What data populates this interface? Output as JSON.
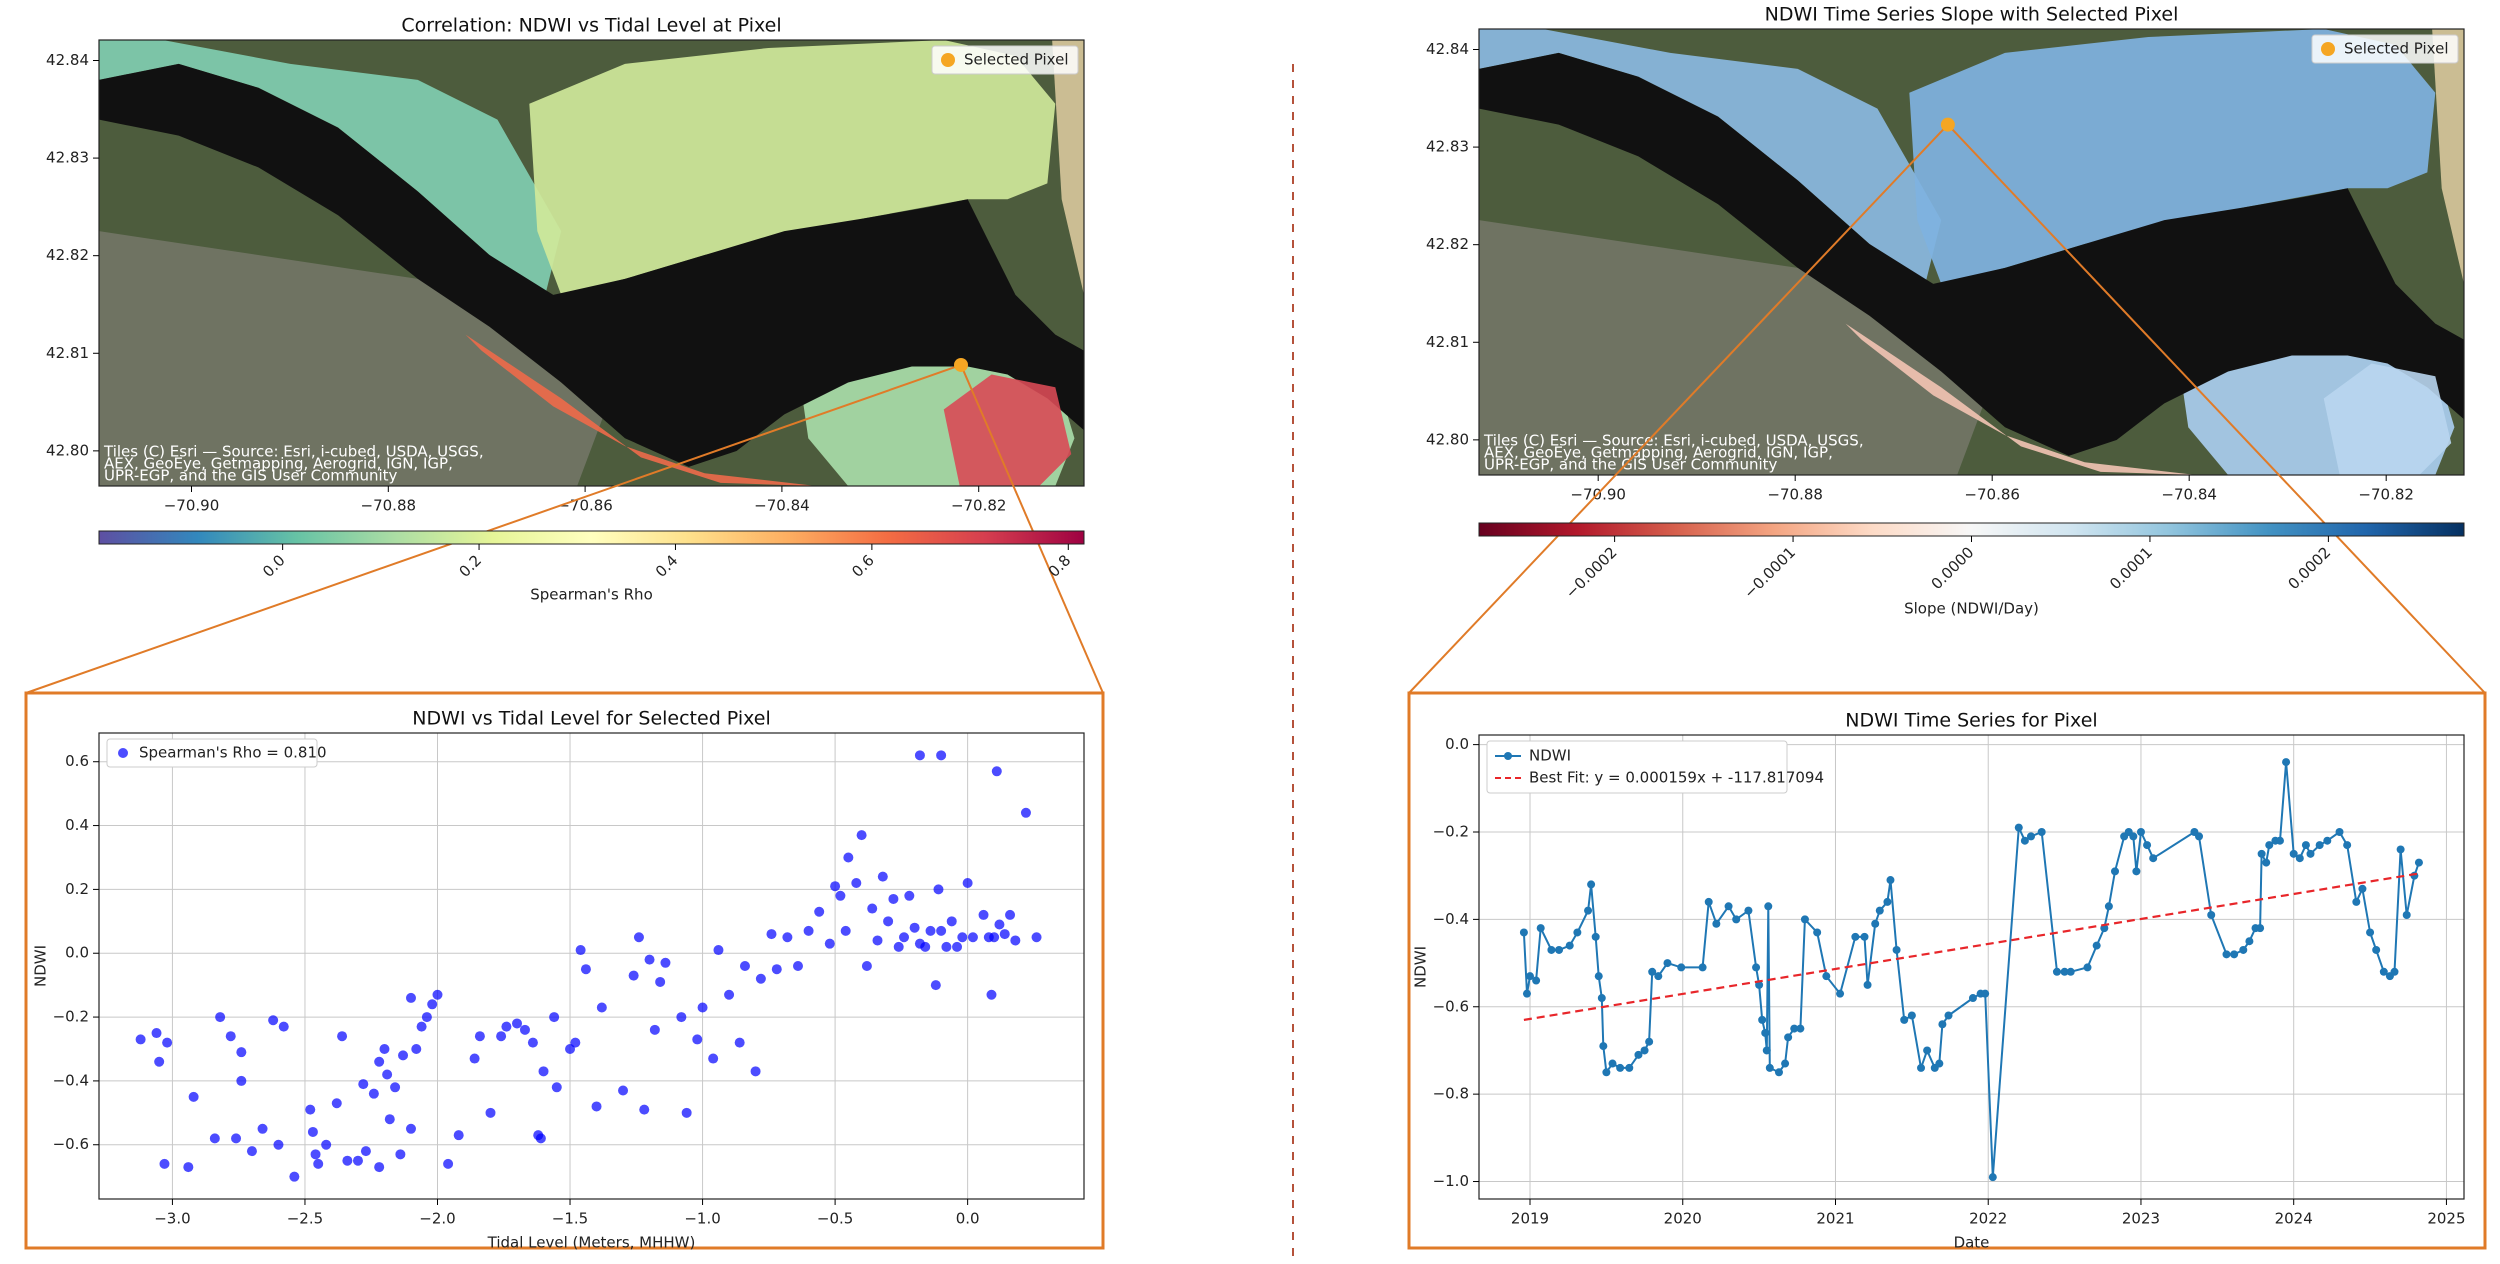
{
  "chart_data": [
    {
      "type": "map",
      "title": "Correlation: NDWI vs Tidal Level at Pixel",
      "xlim": [
        -70.9094,
        -70.8093
      ],
      "ylim": [
        42.7964,
        42.8421
      ],
      "xticks": [
        {
          "value": -70.9,
          "label": "−70.90"
        },
        {
          "value": -70.88,
          "label": "−70.88"
        },
        {
          "value": -70.86,
          "label": "−70.86"
        },
        {
          "value": -70.84,
          "label": "−70.84"
        },
        {
          "value": -70.82,
          "label": "−70.82"
        }
      ],
      "yticks": [
        {
          "value": 42.8,
          "label": "42.80"
        },
        42.81,
        42.82,
        42.83,
        42.84
      ],
      "series": [
        {
          "name": "Selected Pixel",
          "color": "#f5a623",
          "x": [
            -70.8218
          ],
          "values": [
            42.8088
          ]
        }
      ],
      "legend": "upper right",
      "colorbar": {
        "label": "Spearman's Rho",
        "colormap": "Spectral_r",
        "lim": [
          -0.187,
          0.816
        ],
        "ticks": [
          {
            "value": 0,
            "label": "0.0"
          },
          0.2,
          0.4,
          0.6,
          0.8
        ]
      },
      "attribution": [
        "Tiles (C) Esri — Source: Esri, i-cubed, USDA, USGS,",
        "AEX, GeoEye, Getmapping, Aerogrid, IGN, IGP,",
        "UPR-EGP, and the GIS User Community"
      ]
    },
    {
      "type": "map",
      "title": "NDWI Time Series Slope with Selected Pixel",
      "xlim": [
        -70.9121,
        -70.8121
      ],
      "ylim": [
        42.7964,
        42.8421
      ],
      "xticks": [
        {
          "value": -70.9,
          "label": "−70.90"
        },
        {
          "value": -70.88,
          "label": "−70.88"
        },
        {
          "value": -70.86,
          "label": "−70.86"
        },
        {
          "value": -70.84,
          "label": "−70.84"
        },
        {
          "value": -70.82,
          "label": "−70.82"
        }
      ],
      "yticks": [
        {
          "value": 42.8,
          "label": "42.80"
        },
        42.81,
        42.82,
        42.83,
        42.84
      ],
      "series": [
        {
          "name": "Selected Pixel",
          "color": "#f5a623",
          "x": [
            -70.8645
          ],
          "values": [
            42.8323
          ]
        }
      ],
      "legend": "upper right",
      "colorbar": {
        "label": "Slope (NDWI/Day)",
        "colormap": "RdBu",
        "lim": [
          -0.000276,
          0.000276
        ],
        "ticks": [
          {
            "value": -0.0002,
            "label": "−0.0002"
          },
          {
            "value": -0.0001,
            "label": "−0.0001"
          },
          {
            "value": 0,
            "label": "0.0000"
          },
          0.0001,
          0.0002
        ]
      },
      "attribution": [
        "Tiles (C) Esri — Source: Esri, i-cubed, USDA, USGS,",
        "AEX, GeoEye, Getmapping, Aerogrid, IGN, IGP,",
        "UPR-EGP, and the GIS User Community"
      ]
    },
    {
      "type": "scatter",
      "title": "NDWI vs Tidal Level for Selected Pixel",
      "x_label": "Tidal Level (Meters, MHHW)",
      "y_label": "NDWI",
      "xlim": [
        -3.277,
        0.439
      ],
      "ylim": [
        -0.77,
        0.69
      ],
      "xticks": [
        {
          "value": -3,
          "label": "−3.0"
        },
        {
          "value": -2.5,
          "label": "−2.5"
        },
        {
          "value": -2,
          "label": "−2.0"
        },
        {
          "value": -1.5,
          "label": "−1.5"
        },
        {
          "value": -1,
          "label": "−1.0"
        },
        {
          "value": -0.5,
          "label": "−0.5"
        },
        {
          "value": 0,
          "label": "0.0"
        }
      ],
      "yticks": [
        {
          "value": -0.6,
          "label": "−0.6"
        },
        {
          "value": -0.4,
          "label": "−0.4"
        },
        {
          "value": -0.2,
          "label": "−0.2"
        },
        {
          "value": 0,
          "label": "0.0"
        },
        0.2,
        0.4,
        0.6
      ],
      "grid": true,
      "legend": "upper left",
      "series": [
        {
          "name": "Spearman's Rho = 0.810",
          "color": "#0000ff",
          "x": [
            -3.12,
            -3.06,
            -3.05,
            -3.02,
            -3.03,
            -2.94,
            -2.92,
            -2.84,
            -2.82,
            -2.78,
            -2.74,
            -2.74,
            -2.76,
            -2.7,
            -2.66,
            -2.62,
            -2.58,
            -2.6,
            -2.54,
            -2.48,
            -2.47,
            -2.46,
            -2.45,
            -2.42,
            -2.38,
            -2.36,
            -2.34,
            -2.3,
            -2.28,
            -2.27,
            -2.24,
            -2.22,
            -2.22,
            -2.2,
            -2.19,
            -2.18,
            -2.16,
            -2.14,
            -2.13,
            -2.1,
            -2.1,
            -2.08,
            -2.06,
            -2.04,
            -2.02,
            -2.0,
            -1.96,
            -1.92,
            -1.86,
            -1.84,
            -1.8,
            -1.76,
            -1.74,
            -1.7,
            -1.67,
            -1.64,
            -1.62,
            -1.61,
            -1.6,
            -1.56,
            -1.55,
            -1.5,
            -1.48,
            -1.46,
            -1.44,
            -1.4,
            -1.38,
            -1.3,
            -1.26,
            -1.24,
            -1.22,
            -1.2,
            -1.18,
            -1.16,
            -1.14,
            -1.08,
            -1.06,
            -1.02,
            -1.0,
            -0.96,
            -0.94,
            -0.9,
            -0.86,
            -0.84,
            -0.8,
            -0.78,
            -0.74,
            -0.72,
            -0.68,
            -0.64,
            -0.6,
            -0.56,
            -0.52,
            -0.5,
            -0.48,
            -0.46,
            -0.45,
            -0.4,
            -0.42,
            -0.38,
            -0.36,
            -0.34,
            -0.32,
            -0.3,
            -0.28,
            -0.26,
            -0.24,
            -0.22,
            -0.2,
            -0.18,
            -0.16,
            -0.14,
            -0.12,
            -0.11,
            -0.1,
            -0.08,
            -0.06,
            -0.04,
            -0.02,
            0.0,
            0.02,
            0.06,
            0.08,
            0.09,
            0.1,
            0.11,
            0.12,
            0.14,
            0.16,
            0.18,
            0.22,
            0.26,
            -0.18,
            -0.1
          ],
          "values": [
            -0.27,
            -0.25,
            -0.34,
            -0.28,
            -0.66,
            -0.67,
            -0.45,
            -0.58,
            -0.2,
            -0.26,
            -0.31,
            -0.4,
            -0.58,
            -0.62,
            -0.55,
            -0.21,
            -0.23,
            -0.6,
            -0.7,
            -0.49,
            -0.56,
            -0.63,
            -0.66,
            -0.6,
            -0.47,
            -0.26,
            -0.65,
            -0.65,
            -0.41,
            -0.62,
            -0.44,
            -0.67,
            -0.34,
            -0.3,
            -0.38,
            -0.52,
            -0.42,
            -0.63,
            -0.32,
            -0.55,
            -0.14,
            -0.3,
            -0.23,
            -0.2,
            -0.16,
            -0.13,
            -0.66,
            -0.57,
            -0.33,
            -0.26,
            -0.5,
            -0.26,
            -0.23,
            -0.22,
            -0.24,
            -0.28,
            -0.57,
            -0.58,
            -0.37,
            -0.2,
            -0.42,
            -0.3,
            -0.28,
            0.01,
            -0.05,
            -0.48,
            -0.17,
            -0.43,
            -0.07,
            0.05,
            -0.49,
            -0.02,
            -0.24,
            -0.09,
            -0.03,
            -0.2,
            -0.5,
            -0.27,
            -0.17,
            -0.33,
            0.01,
            -0.13,
            -0.28,
            -0.04,
            -0.37,
            -0.08,
            0.06,
            -0.05,
            0.05,
            -0.04,
            0.07,
            0.13,
            0.03,
            0.21,
            0.18,
            0.07,
            0.3,
            0.37,
            0.22,
            -0.04,
            0.14,
            0.04,
            0.24,
            0.1,
            0.17,
            0.02,
            0.05,
            0.18,
            0.08,
            0.03,
            0.02,
            0.07,
            -0.1,
            0.2,
            0.07,
            0.02,
            0.1,
            0.02,
            0.05,
            0.22,
            0.05,
            0.12,
            0.05,
            -0.13,
            0.05,
            0.57,
            0.09,
            0.06,
            0.12,
            0.04,
            0.44,
            0.05,
            0.62,
            0.62
          ]
        }
      ]
    },
    {
      "type": "line",
      "title": "NDWI Time Series for Pixel",
      "x_label": "Date",
      "y_label": "NDWI",
      "xlim": [
        2018.666,
        2025.115
      ],
      "ylim": [
        -1.04,
        0.022
      ],
      "xticks": [
        2019,
        2020,
        2021,
        2022,
        2023,
        2024,
        2025
      ],
      "yticks": [
        {
          "value": -1,
          "label": "−1.0"
        },
        {
          "value": -0.8,
          "label": "−0.8"
        },
        {
          "value": -0.6,
          "label": "−0.6"
        },
        {
          "value": -0.4,
          "label": "−0.4"
        },
        {
          "value": -0.2,
          "label": "−0.2"
        },
        {
          "value": 0,
          "label": "0.0"
        }
      ],
      "grid": true,
      "legend": "upper left",
      "series": [
        {
          "name": "NDWI",
          "color": "#1f77b4",
          "marker": true,
          "x": [
            2018.96,
            2018.98,
            2019.0,
            2019.04,
            2019.07,
            2019.14,
            2019.19,
            2019.26,
            2019.31,
            2019.38,
            2019.4,
            2019.43,
            2019.45,
            2019.47,
            2019.48,
            2019.5,
            2019.54,
            2019.59,
            2019.65,
            2019.71,
            2019.75,
            2019.78,
            2019.8,
            2019.84,
            2019.9,
            2019.99,
            2020.13,
            2020.17,
            2020.22,
            2020.3,
            2020.35,
            2020.43,
            2020.48,
            2020.5,
            2020.52,
            2020.54,
            2020.55,
            2020.56,
            2020.57,
            2020.63,
            2020.67,
            2020.69,
            2020.73,
            2020.77,
            2020.8,
            2020.88,
            2020.94,
            2021.03,
            2021.13,
            2021.19,
            2021.21,
            2021.26,
            2021.29,
            2021.34,
            2021.36,
            2021.4,
            2021.45,
            2021.5,
            2021.56,
            2021.6,
            2021.65,
            2021.68,
            2021.7,
            2021.74,
            2021.9,
            2021.95,
            2021.98,
            2022.03,
            2022.2,
            2022.24,
            2022.28,
            2022.35,
            2022.45,
            2022.5,
            2022.54,
            2022.65,
            2022.71,
            2022.76,
            2022.79,
            2022.83,
            2022.89,
            2022.92,
            2022.95,
            2022.97,
            2023.0,
            2023.04,
            2023.08,
            2023.35,
            2023.38,
            2023.46,
            2023.56,
            2023.61,
            2023.67,
            2023.71,
            2023.75,
            2023.78,
            2023.79,
            2023.82,
            2023.84,
            2023.88,
            2023.91,
            2023.95,
            2024.0,
            2024.04,
            2024.08,
            2024.11,
            2024.17,
            2024.22,
            2024.3,
            2024.35,
            2024.41,
            2024.45,
            2024.5,
            2024.54,
            2024.59,
            2024.63,
            2024.66,
            2024.7,
            2024.74,
            2024.79,
            2024.82
          ],
          "values": [
            -0.43,
            -0.57,
            -0.53,
            -0.54,
            -0.42,
            -0.47,
            -0.47,
            -0.46,
            -0.43,
            -0.38,
            -0.32,
            -0.44,
            -0.53,
            -0.58,
            -0.69,
            -0.75,
            -0.73,
            -0.74,
            -0.74,
            -0.71,
            -0.7,
            -0.68,
            -0.52,
            -0.53,
            -0.5,
            -0.51,
            -0.51,
            -0.36,
            -0.41,
            -0.37,
            -0.4,
            -0.38,
            -0.51,
            -0.55,
            -0.63,
            -0.66,
            -0.7,
            -0.37,
            -0.74,
            -0.75,
            -0.73,
            -0.67,
            -0.65,
            -0.65,
            -0.4,
            -0.43,
            -0.53,
            -0.57,
            -0.44,
            -0.44,
            -0.55,
            -0.41,
            -0.38,
            -0.36,
            -0.31,
            -0.47,
            -0.63,
            -0.62,
            -0.74,
            -0.7,
            -0.74,
            -0.73,
            -0.64,
            -0.62,
            -0.58,
            -0.57,
            -0.57,
            -0.99,
            -0.19,
            -0.22,
            -0.21,
            -0.2,
            -0.52,
            -0.52,
            -0.52,
            -0.51,
            -0.46,
            -0.42,
            -0.37,
            -0.29,
            -0.21,
            -0.2,
            -0.21,
            -0.29,
            -0.2,
            -0.23,
            -0.26,
            -0.2,
            -0.21,
            -0.39,
            -0.48,
            -0.48,
            -0.47,
            -0.45,
            -0.42,
            -0.42,
            -0.25,
            -0.27,
            -0.23,
            -0.22,
            -0.22,
            -0.04,
            -0.25,
            -0.26,
            -0.23,
            -0.25,
            -0.23,
            -0.22,
            -0.2,
            -0.23,
            -0.36,
            -0.33,
            -0.43,
            -0.47,
            -0.52,
            -0.53,
            -0.52,
            -0.24,
            -0.39,
            -0.3,
            -0.27
          ]
        },
        {
          "name": "Best Fit: y = 0.000159x + -117.817094",
          "color": "#e8262a",
          "dashed": true,
          "x": [
            2018.96,
            2024.82
          ],
          "values": [
            -0.63,
            -0.295
          ]
        }
      ]
    }
  ]
}
